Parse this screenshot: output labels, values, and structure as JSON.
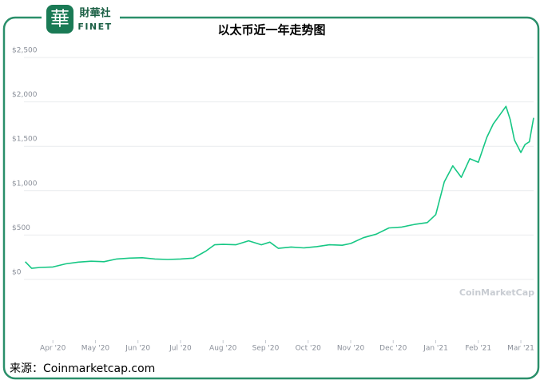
{
  "logo": {
    "mark": "華",
    "name": "財華社",
    "latin": "FINET"
  },
  "watermark": "CoinMarketCap",
  "source": "来源：Coinmarketcap.com",
  "chart_data": {
    "type": "line",
    "title": "以太币近一年走势图",
    "x": [
      3.35,
      3.5,
      3.7,
      4.0,
      4.3,
      4.6,
      4.9,
      5.2,
      5.5,
      5.8,
      6.1,
      6.4,
      6.7,
      7.0,
      7.3,
      7.6,
      7.8,
      8.0,
      8.3,
      8.6,
      8.9,
      9.1,
      9.3,
      9.6,
      9.9,
      10.2,
      10.5,
      10.8,
      11.0,
      11.3,
      11.6,
      11.9,
      12.2,
      12.5,
      12.8,
      13.0,
      13.2,
      13.4,
      13.6,
      13.8,
      14.0,
      14.2,
      14.35,
      14.5,
      14.65,
      14.75,
      14.85,
      15.0,
      15.1,
      15.2,
      15.3
    ],
    "series": [
      {
        "color": "#16c784",
        "values": [
          200,
          125,
          135,
          140,
          175,
          195,
          205,
          200,
          230,
          240,
          245,
          230,
          225,
          230,
          240,
          320,
          390,
          395,
          390,
          435,
          390,
          420,
          350,
          365,
          355,
          370,
          390,
          385,
          405,
          470,
          510,
          580,
          590,
          620,
          640,
          730,
          1100,
          1280,
          1150,
          1360,
          1320,
          1600,
          1750,
          1850,
          1950,
          1800,
          1570,
          1430,
          1520,
          1550,
          1820
        ]
      }
    ],
    "xlim": [
      3.32,
      15.3
    ],
    "ylim": [
      0,
      2500
    ],
    "xticks": [
      {
        "value": 4,
        "label": "Apr '20"
      },
      {
        "value": 5,
        "label": "May '20"
      },
      {
        "value": 6,
        "label": "Jun '20"
      },
      {
        "value": 7,
        "label": "Jul '20"
      },
      {
        "value": 8,
        "label": "Aug '20"
      },
      {
        "value": 9,
        "label": "Sep '20"
      },
      {
        "value": 10,
        "label": "Oct '20"
      },
      {
        "value": 11,
        "label": "Nov '20"
      },
      {
        "value": 12,
        "label": "Dec '20"
      },
      {
        "value": 13,
        "label": "Jan '21"
      },
      {
        "value": 14,
        "label": "Feb '21"
      },
      {
        "value": 15,
        "label": "Mar '21"
      }
    ],
    "yticks": [
      {
        "value": 0,
        "label": "$0"
      },
      {
        "value": 500,
        "label": "$500"
      },
      {
        "value": 1000,
        "label": "$1,000"
      },
      {
        "value": 1500,
        "label": "$1,500"
      },
      {
        "value": 2000,
        "label": "$2,000"
      },
      {
        "value": 2500,
        "label": "$2,500"
      }
    ],
    "grid": true
  }
}
